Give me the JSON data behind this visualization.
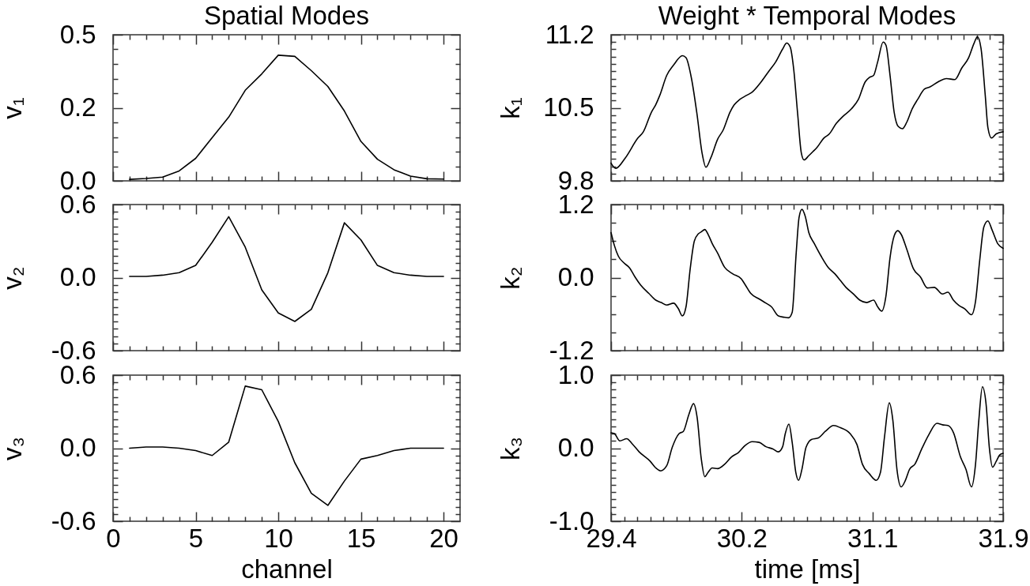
{
  "chart_data": [
    {
      "type": "line",
      "title": "Spatial Modes",
      "ylabel": "v₁",
      "x": [
        1,
        2,
        3,
        4,
        5,
        6,
        7,
        8,
        9,
        10,
        11,
        12,
        13,
        14,
        15,
        16,
        17,
        18,
        19,
        20
      ],
      "series": [
        {
          "color": "#000000",
          "values": [
            0.005,
            0.008,
            0.013,
            0.034,
            0.077,
            0.148,
            0.218,
            0.31,
            0.366,
            0.43,
            0.426,
            0.377,
            0.323,
            0.239,
            0.135,
            0.074,
            0.038,
            0.016,
            0.007,
            0.006
          ]
        }
      ],
      "xlim": [
        0,
        21
      ],
      "ylim": [
        0,
        0.5
      ],
      "xticks": [
        {
          "value": 0,
          "label": null
        },
        {
          "value": 1,
          "label": null
        },
        {
          "value": 2,
          "label": null
        },
        {
          "value": 3,
          "label": null
        },
        {
          "value": 4,
          "label": null
        },
        {
          "value": 5,
          "label": null
        },
        {
          "value": 6,
          "label": null
        },
        {
          "value": 7,
          "label": null
        },
        {
          "value": 8,
          "label": null
        },
        {
          "value": 9,
          "label": null
        },
        {
          "value": 10,
          "label": null
        },
        {
          "value": 11,
          "label": null
        },
        {
          "value": 12,
          "label": null
        },
        {
          "value": 13,
          "label": null
        },
        {
          "value": 14,
          "label": null
        },
        {
          "value": 15,
          "label": null
        },
        {
          "value": 16,
          "label": null
        },
        {
          "value": 17,
          "label": null
        },
        {
          "value": 18,
          "label": null
        },
        {
          "value": 19,
          "label": null
        },
        {
          "value": 20,
          "label": null
        }
      ],
      "yticks": [
        {
          "value": 0,
          "label": "0.0"
        },
        {
          "value": 0.05,
          "label": null
        },
        {
          "value": 0.1,
          "label": null
        },
        {
          "value": 0.15,
          "label": null
        },
        {
          "value": 0.2,
          "label": null
        },
        {
          "value": 0.25,
          "label": "0.2"
        },
        {
          "value": 0.3,
          "label": null
        },
        {
          "value": 0.35,
          "label": null
        },
        {
          "value": 0.4,
          "label": null
        },
        {
          "value": 0.45,
          "label": null
        },
        0.5
      ],
      "tick_labels": "y"
    },
    {
      "type": "line",
      "title": "Weight * Temporal Modes",
      "ylabel": "k₁",
      "x": [
        29.4,
        29.43,
        29.491,
        29.571,
        29.606,
        29.658,
        29.685,
        29.711,
        29.755,
        29.799,
        29.855,
        29.878,
        29.913,
        29.948,
        29.98,
        30.005,
        30.036,
        30.08,
        30.116,
        30.159,
        30.186,
        30.221,
        30.265,
        30.3,
        30.353,
        30.406,
        30.45,
        30.493,
        30.52,
        30.543,
        30.564,
        30.59,
        30.613,
        30.631,
        30.66,
        30.687,
        30.713,
        30.757,
        30.792,
        30.836,
        30.88,
        30.933,
        30.977,
        31.021,
        31.047,
        31.074,
        31.1,
        31.135,
        31.153,
        31.179,
        31.205,
        31.232,
        31.258,
        31.285,
        31.32,
        31.355,
        31.399,
        31.434,
        31.487,
        31.539,
        31.592,
        31.636,
        31.68,
        31.715,
        31.736,
        31.759,
        31.786,
        31.803,
        31.826,
        31.856,
        31.9
      ],
      "series": [
        {
          "color": "#000000",
          "values": [
            9.97,
            9.92,
            10.02,
            10.21,
            10.27,
            10.46,
            10.53,
            10.62,
            10.81,
            10.91,
            11.0,
            10.98,
            10.78,
            10.44,
            10.07,
            9.93,
            10.02,
            10.2,
            10.29,
            10.46,
            10.53,
            10.58,
            10.62,
            10.65,
            10.74,
            10.85,
            10.94,
            11.06,
            11.12,
            11.08,
            10.88,
            10.44,
            10.07,
            10.0,
            10.04,
            10.08,
            10.12,
            10.21,
            10.25,
            10.35,
            10.42,
            10.49,
            10.58,
            10.75,
            10.79,
            10.81,
            10.94,
            11.13,
            11.1,
            10.81,
            10.46,
            10.32,
            10.3,
            10.36,
            10.49,
            10.58,
            10.68,
            10.7,
            10.75,
            10.78,
            10.77,
            10.88,
            10.98,
            11.12,
            11.18,
            11.07,
            10.62,
            10.31,
            10.21,
            10.25,
            10.27
          ]
        }
      ],
      "xlim": [
        29.4,
        31.9
      ],
      "ylim": [
        9.8,
        11.2
      ],
      "xticks": [
        {
          "value": 29.4,
          "label": null
        },
        {
          "value": 29.4833,
          "label": null
        },
        {
          "value": 29.5667,
          "label": null
        },
        {
          "value": 29.65,
          "label": null
        },
        {
          "value": 29.7333,
          "label": null
        },
        {
          "value": 29.8167,
          "label": null
        },
        {
          "value": 29.9,
          "label": null
        },
        {
          "value": 29.9833,
          "label": null
        },
        {
          "value": 30.0667,
          "label": null
        },
        {
          "value": 30.15,
          "label": null
        },
        {
          "value": 30.2333,
          "label": null
        },
        {
          "value": 30.3167,
          "label": null
        },
        {
          "value": 30.4,
          "label": null
        },
        {
          "value": 30.4833,
          "label": null
        },
        {
          "value": 30.5667,
          "label": null
        },
        {
          "value": 30.65,
          "label": null
        },
        {
          "value": 30.7333,
          "label": null
        },
        {
          "value": 30.8167,
          "label": null
        },
        {
          "value": 30.9,
          "label": null
        },
        {
          "value": 30.9833,
          "label": null
        },
        {
          "value": 31.0667,
          "label": null
        },
        {
          "value": 31.15,
          "label": null
        },
        {
          "value": 31.2333,
          "label": null
        },
        {
          "value": 31.3167,
          "label": null
        },
        {
          "value": 31.4,
          "label": null
        },
        {
          "value": 31.4833,
          "label": null
        },
        {
          "value": 31.5667,
          "label": null
        },
        {
          "value": 31.65,
          "label": null
        },
        {
          "value": 31.7333,
          "label": null
        },
        {
          "value": 31.8167,
          "label": null
        },
        {
          "value": 31.9,
          "label": null
        }
      ],
      "yticks": [
        9.8,
        {
          "value": 9.87,
          "label": null
        },
        {
          "value": 9.94,
          "label": null
        },
        {
          "value": 10.01,
          "label": null
        },
        {
          "value": 10.08,
          "label": null
        },
        {
          "value": 10.15,
          "label": null
        },
        {
          "value": 10.22,
          "label": null
        },
        {
          "value": 10.29,
          "label": null
        },
        {
          "value": 10.36,
          "label": null
        },
        {
          "value": 10.43,
          "label": null
        },
        10.5,
        {
          "value": 10.57,
          "label": null
        },
        {
          "value": 10.64,
          "label": null
        },
        {
          "value": 10.71,
          "label": null
        },
        {
          "value": 10.78,
          "label": null
        },
        {
          "value": 10.85,
          "label": null
        },
        {
          "value": 10.92,
          "label": null
        },
        {
          "value": 10.99,
          "label": null
        },
        {
          "value": 11.06,
          "label": null
        },
        {
          "value": 11.13,
          "label": null
        },
        11.2
      ],
      "tick_labels": "y"
    },
    {
      "type": "line",
      "ylabel": "v₂",
      "x": [
        1,
        2,
        3,
        4,
        5,
        6,
        7,
        8,
        9,
        10,
        11,
        12,
        13,
        14,
        15,
        16,
        17,
        18,
        19,
        20
      ],
      "series": [
        {
          "color": "#000000",
          "values": [
            0.01,
            0.01,
            0.02,
            0.04,
            0.1,
            0.29,
            0.5,
            0.25,
            -0.1,
            -0.29,
            -0.36,
            -0.26,
            0.04,
            0.45,
            0.31,
            0.1,
            0.04,
            0.02,
            0.01,
            0.01
          ]
        }
      ],
      "xlim": [
        0,
        21
      ],
      "ylim": [
        -0.6,
        0.6
      ],
      "xticks": [
        {
          "value": 0,
          "label": null
        },
        {
          "value": 1,
          "label": null
        },
        {
          "value": 2,
          "label": null
        },
        {
          "value": 3,
          "label": null
        },
        {
          "value": 4,
          "label": null
        },
        {
          "value": 5,
          "label": null
        },
        {
          "value": 6,
          "label": null
        },
        {
          "value": 7,
          "label": null
        },
        {
          "value": 8,
          "label": null
        },
        {
          "value": 9,
          "label": null
        },
        {
          "value": 10,
          "label": null
        },
        {
          "value": 11,
          "label": null
        },
        {
          "value": 12,
          "label": null
        },
        {
          "value": 13,
          "label": null
        },
        {
          "value": 14,
          "label": null
        },
        {
          "value": 15,
          "label": null
        },
        {
          "value": 16,
          "label": null
        },
        {
          "value": 17,
          "label": null
        },
        {
          "value": 18,
          "label": null
        },
        {
          "value": 19,
          "label": null
        },
        {
          "value": 20,
          "label": null
        }
      ],
      "yticks": [
        -0.6,
        {
          "value": -0.54,
          "label": null
        },
        {
          "value": -0.48,
          "label": null
        },
        {
          "value": -0.42,
          "label": null
        },
        {
          "value": -0.36,
          "label": null
        },
        {
          "value": -0.3,
          "label": null
        },
        {
          "value": -0.24,
          "label": null
        },
        {
          "value": -0.18,
          "label": null
        },
        {
          "value": -0.12,
          "label": null
        },
        {
          "value": -0.06,
          "label": null
        },
        {
          "value": 0,
          "label": "0.0"
        },
        {
          "value": 0.06,
          "label": null
        },
        {
          "value": 0.12,
          "label": null
        },
        {
          "value": 0.18,
          "label": null
        },
        {
          "value": 0.24,
          "label": null
        },
        {
          "value": 0.3,
          "label": null
        },
        {
          "value": 0.36,
          "label": null
        },
        {
          "value": 0.42,
          "label": null
        },
        {
          "value": 0.48,
          "label": null
        },
        {
          "value": 0.54,
          "label": null
        },
        0.6
      ],
      "tick_labels": "y"
    },
    {
      "type": "line",
      "ylabel": "k₂",
      "x": [
        29.4,
        29.421,
        29.447,
        29.483,
        29.518,
        29.553,
        29.588,
        29.641,
        29.685,
        29.72,
        29.755,
        29.799,
        29.829,
        29.855,
        29.878,
        29.905,
        29.931,
        29.957,
        29.975,
        29.998,
        30.019,
        30.045,
        30.08,
        30.124,
        30.177,
        30.23,
        30.256,
        30.291,
        30.344,
        30.388,
        30.423,
        30.467,
        30.502,
        30.532,
        30.555,
        30.581,
        30.599,
        30.617,
        30.638,
        30.661,
        30.696,
        30.74,
        30.784,
        30.828,
        30.863,
        30.898,
        30.942,
        30.986,
        31.03,
        31.074,
        31.1,
        31.126,
        31.153,
        31.179,
        31.206,
        31.228,
        31.25,
        31.285,
        31.329,
        31.373,
        31.417,
        31.461,
        31.513,
        31.548,
        31.583,
        31.619,
        31.654,
        31.698,
        31.724,
        31.751,
        31.777,
        31.803,
        31.83,
        31.865,
        31.9
      ],
      "series": [
        {
          "color": "#000000",
          "values": [
            0.74,
            0.53,
            0.35,
            0.24,
            0.16,
            0.01,
            -0.12,
            -0.26,
            -0.37,
            -0.41,
            -0.45,
            -0.42,
            -0.51,
            -0.63,
            -0.48,
            0.15,
            0.6,
            0.72,
            0.75,
            0.79,
            0.71,
            0.56,
            0.4,
            0.17,
            0.06,
            -0.02,
            -0.12,
            -0.26,
            -0.35,
            -0.42,
            -0.48,
            -0.63,
            -0.65,
            -0.66,
            -0.57,
            0.42,
            0.99,
            1.12,
            1.01,
            0.74,
            0.56,
            0.35,
            0.17,
            0.06,
            -0.05,
            -0.16,
            -0.26,
            -0.37,
            -0.41,
            -0.37,
            -0.48,
            -0.55,
            -0.3,
            0.33,
            0.69,
            0.77,
            0.71,
            0.47,
            0.14,
            0.01,
            -0.17,
            -0.16,
            -0.27,
            -0.24,
            -0.37,
            -0.46,
            -0.51,
            -0.61,
            -0.39,
            0.29,
            0.83,
            0.93,
            0.78,
            0.56,
            0.48
          ]
        }
      ],
      "xlim": [
        29.4,
        31.9
      ],
      "ylim": [
        -1.2,
        1.2
      ],
      "xticks": [
        {
          "value": 29.4,
          "label": null
        },
        {
          "value": 29.4833,
          "label": null
        },
        {
          "value": 29.5667,
          "label": null
        },
        {
          "value": 29.65,
          "label": null
        },
        {
          "value": 29.7333,
          "label": null
        },
        {
          "value": 29.8167,
          "label": null
        },
        {
          "value": 29.9,
          "label": null
        },
        {
          "value": 29.9833,
          "label": null
        },
        {
          "value": 30.0667,
          "label": null
        },
        {
          "value": 30.15,
          "label": null
        },
        {
          "value": 30.2333,
          "label": null
        },
        {
          "value": 30.3167,
          "label": null
        },
        {
          "value": 30.4,
          "label": null
        },
        {
          "value": 30.4833,
          "label": null
        },
        {
          "value": 30.5667,
          "label": null
        },
        {
          "value": 30.65,
          "label": null
        },
        {
          "value": 30.7333,
          "label": null
        },
        {
          "value": 30.8167,
          "label": null
        },
        {
          "value": 30.9,
          "label": null
        },
        {
          "value": 30.9833,
          "label": null
        },
        {
          "value": 31.0667,
          "label": null
        },
        {
          "value": 31.15,
          "label": null
        },
        {
          "value": 31.2333,
          "label": null
        },
        {
          "value": 31.3167,
          "label": null
        },
        {
          "value": 31.4,
          "label": null
        },
        {
          "value": 31.4833,
          "label": null
        },
        {
          "value": 31.5667,
          "label": null
        },
        {
          "value": 31.65,
          "label": null
        },
        {
          "value": 31.7333,
          "label": null
        },
        {
          "value": 31.8167,
          "label": null
        },
        {
          "value": 31.9,
          "label": null
        }
      ],
      "yticks": [
        -1.2,
        {
          "value": -0.9,
          "label": null
        },
        {
          "value": -0.6,
          "label": null
        },
        {
          "value": -0.3,
          "label": null
        },
        {
          "value": 0,
          "label": "0.0"
        },
        {
          "value": 0.3,
          "label": null
        },
        {
          "value": 0.6,
          "label": null
        },
        {
          "value": 0.9,
          "label": null
        },
        1.2
      ],
      "tick_labels": "y"
    },
    {
      "type": "line",
      "xlabel": "channel",
      "ylabel": "v₃",
      "x": [
        1,
        2,
        3,
        4,
        5,
        6,
        7,
        8,
        9,
        10,
        11,
        12,
        13,
        14,
        15,
        16,
        17,
        18,
        19,
        20
      ],
      "series": [
        {
          "color": "#000000",
          "values": [
            0,
            0.01,
            0.01,
            0,
            -0.02,
            -0.06,
            0.05,
            0.51,
            0.48,
            0.22,
            -0.12,
            -0.37,
            -0.47,
            -0.27,
            -0.09,
            -0.06,
            -0.02,
            0,
            0,
            0
          ]
        }
      ],
      "xlim": [
        0,
        21
      ],
      "ylim": [
        -0.6,
        0.6
      ],
      "xticks": [
        0,
        {
          "value": 1,
          "label": null
        },
        {
          "value": 2,
          "label": null
        },
        {
          "value": 3,
          "label": null
        },
        {
          "value": 4,
          "label": null
        },
        5,
        {
          "value": 6,
          "label": null
        },
        {
          "value": 7,
          "label": null
        },
        {
          "value": 8,
          "label": null
        },
        {
          "value": 9,
          "label": null
        },
        10,
        {
          "value": 11,
          "label": null
        },
        {
          "value": 12,
          "label": null
        },
        {
          "value": 13,
          "label": null
        },
        {
          "value": 14,
          "label": null
        },
        15,
        {
          "value": 16,
          "label": null
        },
        {
          "value": 17,
          "label": null
        },
        {
          "value": 18,
          "label": null
        },
        {
          "value": 19,
          "label": null
        },
        20
      ],
      "yticks": [
        -0.6,
        {
          "value": -0.54,
          "label": null
        },
        {
          "value": -0.48,
          "label": null
        },
        {
          "value": -0.42,
          "label": null
        },
        {
          "value": -0.36,
          "label": null
        },
        {
          "value": -0.3,
          "label": null
        },
        {
          "value": -0.24,
          "label": null
        },
        {
          "value": -0.18,
          "label": null
        },
        {
          "value": -0.12,
          "label": null
        },
        {
          "value": -0.06,
          "label": null
        },
        {
          "value": 0,
          "label": "0.0"
        },
        {
          "value": 0.06,
          "label": null
        },
        {
          "value": 0.12,
          "label": null
        },
        {
          "value": 0.18,
          "label": null
        },
        {
          "value": 0.24,
          "label": null
        },
        {
          "value": 0.3,
          "label": null
        },
        {
          "value": 0.36,
          "label": null
        },
        {
          "value": 0.42,
          "label": null
        },
        {
          "value": 0.48,
          "label": null
        },
        {
          "value": 0.54,
          "label": null
        },
        0.6
      ]
    },
    {
      "type": "line",
      "xlabel": "time [ms]",
      "ylabel": "k₃",
      "x": [
        29.4,
        29.421,
        29.456,
        29.5,
        29.535,
        29.579,
        29.65,
        29.685,
        29.716,
        29.755,
        29.79,
        29.834,
        29.861,
        29.896,
        29.926,
        29.949,
        29.975,
        29.998,
        30.019,
        30.045,
        30.08,
        30.124,
        30.168,
        30.212,
        30.256,
        30.3,
        30.344,
        30.388,
        30.432,
        30.467,
        30.494,
        30.511,
        30.534,
        30.555,
        30.578,
        30.596,
        30.617,
        30.643,
        30.678,
        30.722,
        30.766,
        30.819,
        30.863,
        30.924,
        30.968,
        31.003,
        31.047,
        31.091,
        31.118,
        31.144,
        31.174,
        31.197,
        31.223,
        31.25,
        31.277,
        31.303,
        31.337,
        31.381,
        31.425,
        31.478,
        31.513,
        31.548,
        31.584,
        31.628,
        31.663,
        31.698,
        31.724,
        31.745,
        31.768,
        31.791,
        31.812,
        31.833,
        31.856,
        31.879,
        31.9
      ],
      "series": [
        {
          "color": "#000000",
          "values": [
            0.21,
            0.2,
            0.1,
            0.13,
            0.06,
            -0.05,
            -0.18,
            -0.27,
            -0.31,
            -0.24,
            0.01,
            0.2,
            0.23,
            0.46,
            0.61,
            0.42,
            -0.14,
            -0.39,
            -0.33,
            -0.27,
            -0.28,
            -0.22,
            -0.12,
            -0.06,
            0.04,
            0.09,
            0.08,
            0.02,
            -0.01,
            -0.05,
            0.02,
            0.2,
            0.33,
            0.08,
            -0.33,
            -0.44,
            -0.29,
            0.01,
            0.12,
            0.14,
            0.23,
            0.31,
            0.28,
            0.2,
            0.05,
            -0.22,
            -0.35,
            -0.44,
            -0.33,
            0.16,
            0.62,
            0.38,
            -0.29,
            -0.53,
            -0.44,
            -0.29,
            -0.22,
            -0.01,
            0.18,
            0.34,
            0.32,
            0.31,
            0.21,
            -0.12,
            -0.29,
            -0.53,
            -0.22,
            0.38,
            0.84,
            0.61,
            0.01,
            -0.26,
            -0.18,
            -0.09,
            -0.07
          ]
        }
      ],
      "xlim": [
        29.4,
        31.9
      ],
      "ylim": [
        -1,
        1
      ],
      "xticks": [
        29.4,
        {
          "value": 29.4833,
          "label": null
        },
        {
          "value": 29.5667,
          "label": null
        },
        {
          "value": 29.65,
          "label": null
        },
        {
          "value": 29.7333,
          "label": null
        },
        {
          "value": 29.8167,
          "label": null
        },
        {
          "value": 29.9,
          "label": null
        },
        {
          "value": 29.9833,
          "label": null
        },
        {
          "value": 30.0667,
          "label": null
        },
        {
          "value": 30.15,
          "label": null
        },
        {
          "value": 30.2333,
          "label": "30.2"
        },
        {
          "value": 30.3167,
          "label": null
        },
        {
          "value": 30.4,
          "label": null
        },
        {
          "value": 30.4833,
          "label": null
        },
        {
          "value": 30.5667,
          "label": null
        },
        {
          "value": 30.65,
          "label": null
        },
        {
          "value": 30.7333,
          "label": null
        },
        {
          "value": 30.8167,
          "label": null
        },
        {
          "value": 30.9,
          "label": null
        },
        {
          "value": 30.9833,
          "label": null
        },
        {
          "value": 31.0667,
          "label": "31.1"
        },
        {
          "value": 31.15,
          "label": null
        },
        {
          "value": 31.2333,
          "label": null
        },
        {
          "value": 31.3167,
          "label": null
        },
        {
          "value": 31.4,
          "label": null
        },
        {
          "value": 31.4833,
          "label": null
        },
        {
          "value": 31.5667,
          "label": null
        },
        {
          "value": 31.65,
          "label": null
        },
        {
          "value": 31.7333,
          "label": null
        },
        {
          "value": 31.8167,
          "label": null
        },
        31.9
      ],
      "yticks": [
        {
          "value": -1,
          "label": "-1.0"
        },
        {
          "value": -0.9,
          "label": null
        },
        {
          "value": -0.8,
          "label": null
        },
        {
          "value": -0.7,
          "label": null
        },
        {
          "value": -0.6,
          "label": null
        },
        {
          "value": -0.5,
          "label": null
        },
        {
          "value": -0.4,
          "label": null
        },
        {
          "value": -0.3,
          "label": null
        },
        {
          "value": -0.2,
          "label": null
        },
        {
          "value": -0.1,
          "label": null
        },
        {
          "value": 0,
          "label": "0.0"
        },
        {
          "value": 0.1,
          "label": null
        },
        {
          "value": 0.2,
          "label": null
        },
        {
          "value": 0.3,
          "label": null
        },
        {
          "value": 0.4,
          "label": null
        },
        {
          "value": 0.5,
          "label": null
        },
        {
          "value": 0.6,
          "label": null
        },
        {
          "value": 0.7,
          "label": null
        },
        {
          "value": 0.8,
          "label": null
        },
        {
          "value": 0.9,
          "label": null
        },
        {
          "value": 1,
          "label": "1.0"
        }
      ]
    }
  ]
}
